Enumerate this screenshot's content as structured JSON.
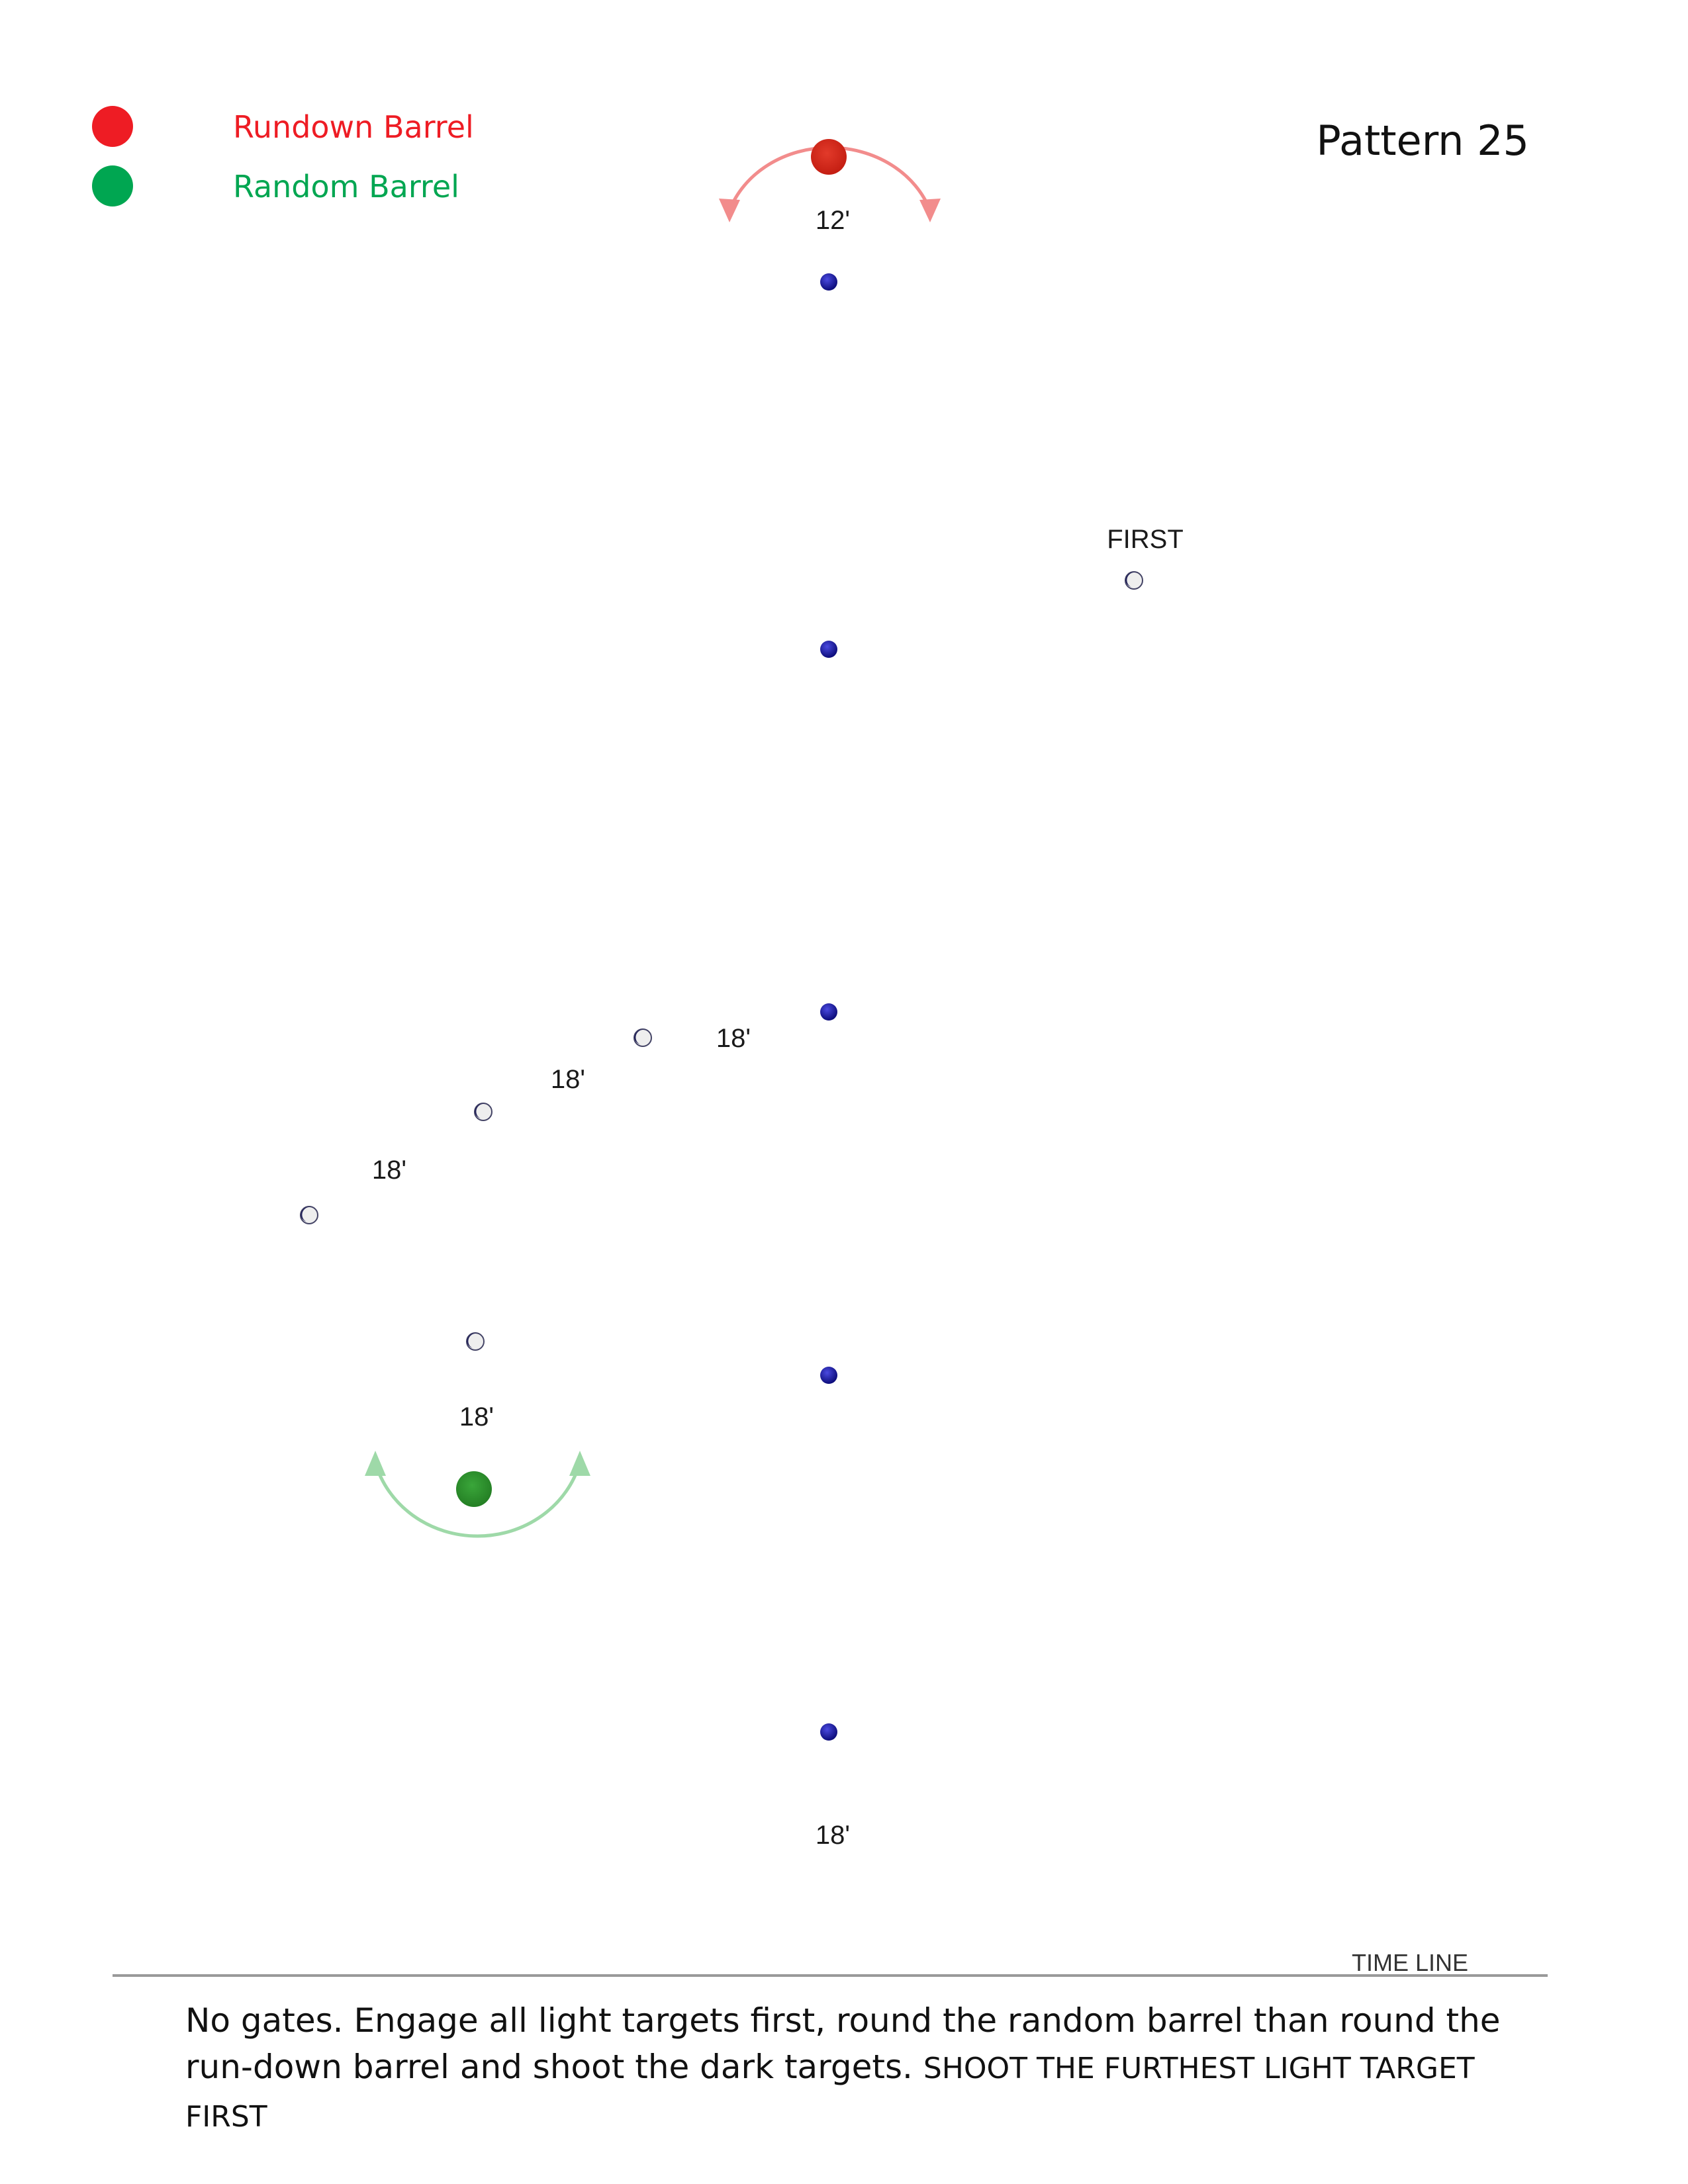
{
  "title": "Pattern 25",
  "legend": [
    {
      "label": "Rundown Barrel",
      "color": "#ee1c24"
    },
    {
      "label": "Random Barrel",
      "color": "#00a651"
    }
  ],
  "labels": {
    "first": "FIRST",
    "time_line": "TIME LINE",
    "dist_top": "12'",
    "dist_diag_1": "18'",
    "dist_diag_2": "18'",
    "dist_diag_3": "18'",
    "dist_random": "18'",
    "dist_bottom": "18'"
  },
  "instructions": {
    "main": "No gates. Engage all light targets first, round the random barrel than round the run-down barrel and shoot the dark targets.",
    "emphasis": "SHOOT THE FURTHEST LIGHT TARGET FIRST"
  },
  "colors": {
    "rundown_barrel": "#d9291c",
    "random_barrel": "#2e9a2e",
    "rundown_arrow": "#f28c8c",
    "random_arrow": "#9ed9a8",
    "dark_target": "#1a1a9c",
    "light_target": "#eeeeee",
    "time_line": "#999999"
  },
  "icons": {
    "dark_target": "dark-target-icon",
    "light_target": "light-target-icon",
    "rundown_barrel": "rundown-barrel-icon",
    "random_barrel": "random-barrel-icon"
  }
}
